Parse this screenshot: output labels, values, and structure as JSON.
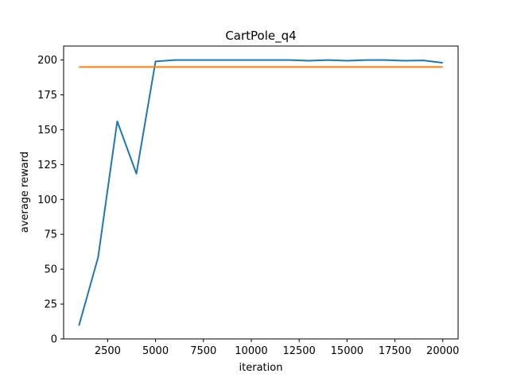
{
  "chart_data": {
    "type": "line",
    "title": "CartPole_q4",
    "xlabel": "iteration",
    "ylabel": "average reward",
    "xlim": [
      200,
      20800
    ],
    "ylim": [
      0,
      210
    ],
    "xticks": [
      2500,
      5000,
      7500,
      10000,
      12500,
      15000,
      17500,
      20000
    ],
    "yticks": [
      0,
      25,
      50,
      75,
      100,
      125,
      150,
      175,
      200
    ],
    "grid": false,
    "legend": "none",
    "series": [
      {
        "color": "#1f77b4",
        "x": [
          1000,
          2000,
          3000,
          4000,
          5000,
          6000,
          7000,
          8000,
          9000,
          10000,
          11000,
          12000,
          13000,
          14000,
          15000,
          16000,
          17000,
          18000,
          19000,
          20000
        ],
        "y": [
          9.5,
          58.5,
          156,
          118.5,
          199,
          200,
          200,
          200,
          200,
          200,
          200,
          200,
          199.5,
          200,
          199.5,
          200,
          200,
          199.5,
          199.7,
          198
        ]
      },
      {
        "color": "#ff7f0e",
        "x": [
          1000,
          20000
        ],
        "y": [
          195,
          195
        ]
      }
    ]
  }
}
